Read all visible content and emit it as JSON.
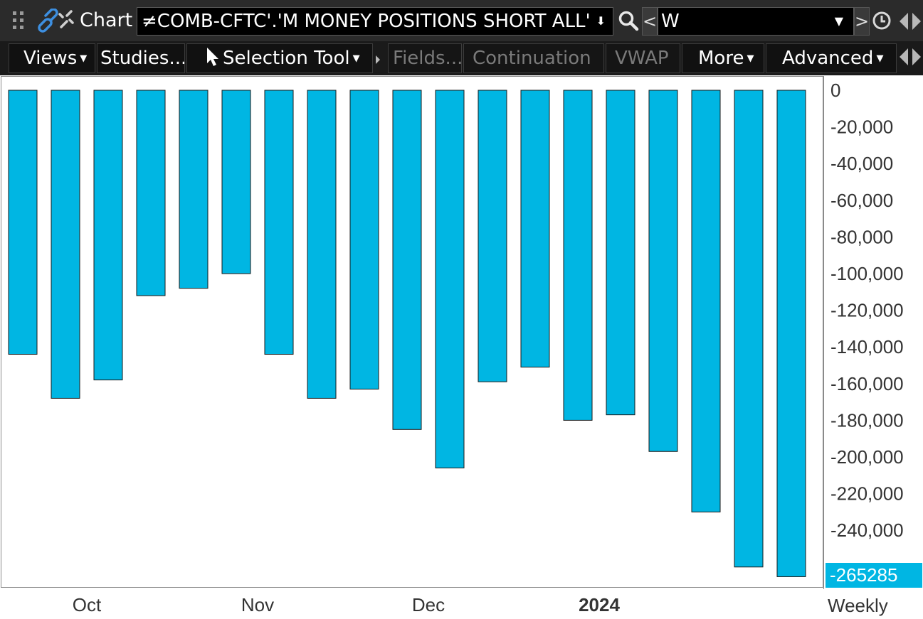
{
  "titlebar": {
    "app_title": "Chart",
    "symbol": "≠COMB-CFTC'.'M MONEY POSITIONS SHORT ALL'",
    "period_prev": "<",
    "period": "W",
    "period_next": ">",
    "icons": [
      "grip-icon",
      "link-icon",
      "search-icon",
      "clock-icon",
      "scroll-arrows-icon"
    ]
  },
  "toolbar": {
    "views": "Views",
    "studies": "Studies...",
    "selection_tool": "Selection Tool",
    "fields": "Fields...",
    "continuation": "Continuation",
    "vwap": "VWAP",
    "more": "More",
    "advanced": "Advanced"
  },
  "chart_data": {
    "type": "bar",
    "series": [
      {
        "values": [
          -144000,
          -168000,
          -158000,
          -112000,
          -108000,
          -100000,
          -144000,
          -168000,
          -163000,
          -185000,
          -206000,
          -159000,
          -151000,
          -180000,
          -177000,
          -197000,
          -230000,
          -260000,
          -265285
        ]
      }
    ],
    "bar_color": "#00b6e3",
    "bar_border_color": "#1a1a1a",
    "ylim": [
      -270000,
      0
    ],
    "y_ticks": [
      0,
      -20000,
      -40000,
      -60000,
      -80000,
      -100000,
      -120000,
      -140000,
      -160000,
      -180000,
      -200000,
      -220000,
      -240000
    ],
    "y_tick_labels": [
      "0",
      "-20,000",
      "-40,000",
      "-60,000",
      "-80,000",
      "-100,000",
      "-120,000",
      "-140,000",
      "-160,000",
      "-180,000",
      "-200,000",
      "-220,000",
      "-240,000"
    ],
    "x_tick_labels": [
      {
        "label": "Oct",
        "after_bar": 1.5,
        "bold": false
      },
      {
        "label": "Nov",
        "after_bar": 5.5,
        "bold": false
      },
      {
        "label": "Dec",
        "after_bar": 9.5,
        "bold": false
      },
      {
        "label": "2024",
        "after_bar": 13.5,
        "bold": true
      }
    ],
    "last_value_label": "-265285",
    "frequency_label": "Weekly",
    "grid": false
  }
}
